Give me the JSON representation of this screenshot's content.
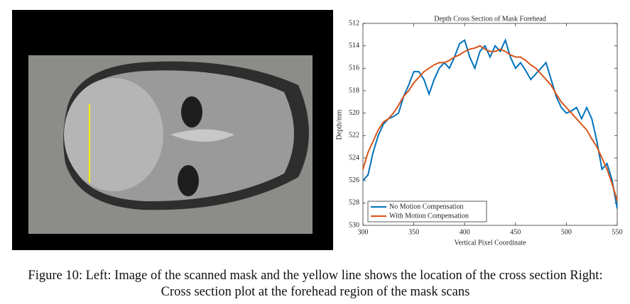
{
  "chart_data": {
    "type": "line",
    "title": "Depth Cross Section of Mask Forehead",
    "x_label": "Vertical Pixel Coordinate",
    "y_label": "Depth/mm",
    "x": [
      300,
      305,
      310,
      315,
      320,
      325,
      330,
      335,
      340,
      345,
      350,
      355,
      360,
      365,
      370,
      375,
      380,
      385,
      390,
      395,
      400,
      405,
      410,
      415,
      420,
      425,
      430,
      435,
      440,
      445,
      450,
      455,
      460,
      465,
      470,
      475,
      480,
      485,
      490,
      495,
      500,
      505,
      510,
      515,
      520,
      525,
      530,
      535,
      540,
      545,
      550
    ],
    "series": [
      {
        "name": "No Motion Compensation",
        "color": "#0072bd",
        "values": [
          526.0,
          525.5,
          523.5,
          522.0,
          521.0,
          520.5,
          520.3,
          520.0,
          518.5,
          517.5,
          516.3,
          516.3,
          517.0,
          518.3,
          517.0,
          516.0,
          515.5,
          516.0,
          515.0,
          513.8,
          513.5,
          515.0,
          516.0,
          514.5,
          514.0,
          515.0,
          514.0,
          514.5,
          513.5,
          515.0,
          516.0,
          515.5,
          516.2,
          517.0,
          516.5,
          516.0,
          515.5,
          517.0,
          518.5,
          519.5,
          520.0,
          519.8,
          519.5,
          520.5,
          519.5,
          520.5,
          522.5,
          525.0,
          524.5,
          526.0,
          528.5
        ]
      },
      {
        "name": "With Motion Compensation",
        "color": "#d95319",
        "values": [
          525.0,
          523.5,
          522.5,
          521.5,
          520.8,
          520.5,
          520.0,
          519.3,
          518.5,
          518.0,
          517.3,
          516.8,
          516.3,
          516.0,
          515.7,
          515.5,
          515.5,
          515.3,
          515.0,
          514.8,
          514.5,
          514.3,
          514.2,
          514.0,
          514.3,
          514.5,
          514.5,
          514.3,
          514.5,
          514.8,
          515.0,
          515.0,
          515.3,
          515.7,
          516.0,
          516.5,
          517.0,
          517.5,
          518.3,
          519.0,
          519.5,
          520.0,
          520.5,
          521.0,
          521.5,
          522.3,
          523.0,
          524.0,
          525.0,
          526.3,
          527.8
        ]
      }
    ],
    "xlim": [
      300,
      550
    ],
    "xticks": [
      300,
      350,
      400,
      450,
      500,
      550
    ],
    "ylim": [
      512,
      530
    ],
    "yticks": [
      512,
      514,
      516,
      518,
      520,
      522,
      524,
      526,
      528,
      530
    ],
    "y_inverted": true,
    "legend": "lower left"
  },
  "caption": "Figure 10: Left: Image of the scanned mask and the yellow line shows the location of the cross section Right: Cross section plot at the forehead region of the mask scans"
}
